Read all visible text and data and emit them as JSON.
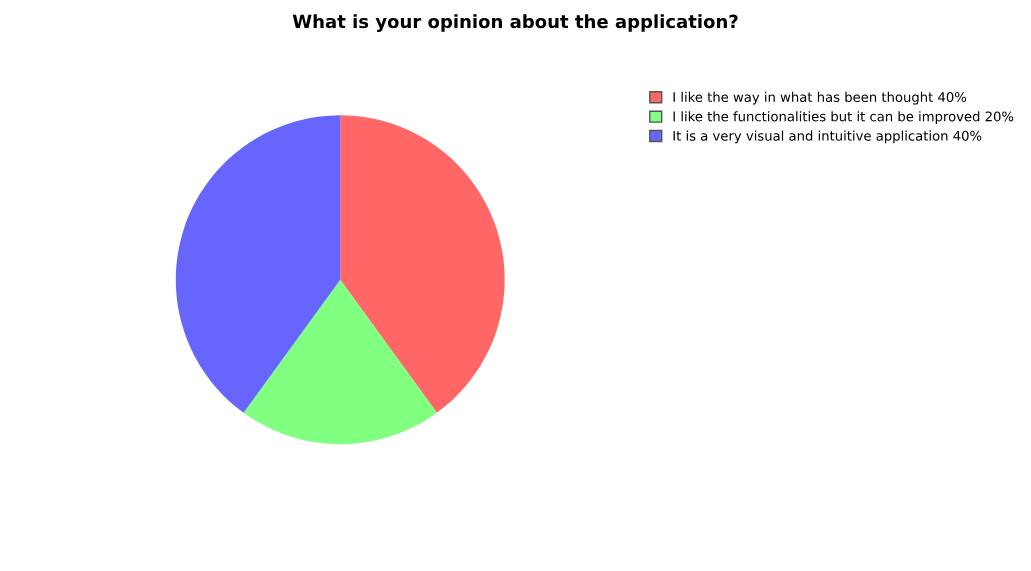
{
  "chart_data": {
    "type": "pie",
    "title": "What is your opinion about the application?",
    "categories": [
      "I like the way in what has been thought 40%",
      "I like the functionalities but it can be improved 20%",
      "It is a very visual and intuitive application 40%"
    ],
    "values": [
      40,
      20,
      40
    ],
    "colors": [
      "#ff6666",
      "#80ff80",
      "#6666ff"
    ],
    "legend": "top right"
  }
}
